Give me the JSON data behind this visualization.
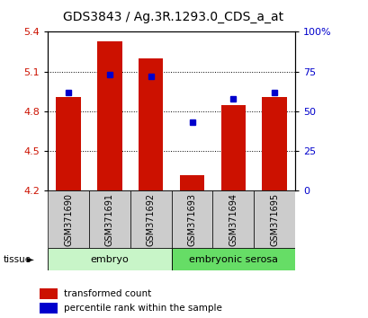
{
  "title": "GDS3843 / Ag.3R.1293.0_CDS_a_at",
  "samples": [
    "GSM371690",
    "GSM371691",
    "GSM371692",
    "GSM371693",
    "GSM371694",
    "GSM371695"
  ],
  "red_values": [
    4.91,
    5.33,
    5.2,
    4.32,
    4.85,
    4.91
  ],
  "blue_percentiles": [
    62,
    73,
    72,
    43,
    58,
    62
  ],
  "ylim": [
    4.2,
    5.4
  ],
  "y2lim": [
    0,
    100
  ],
  "yticks": [
    4.2,
    4.5,
    4.8,
    5.1,
    5.4
  ],
  "y2ticks": [
    0,
    25,
    50,
    75,
    100
  ],
  "y2ticklabels": [
    "0",
    "25",
    "50",
    "75",
    "100%"
  ],
  "tissue_groups": [
    {
      "label": "embryo",
      "start": 0,
      "end": 3,
      "color": "#c8f5c8"
    },
    {
      "label": "embryonic serosa",
      "start": 3,
      "end": 6,
      "color": "#66dd66"
    }
  ],
  "bar_color": "#cc1100",
  "dot_color": "#0000cc",
  "grid_color": "#000000",
  "bar_width": 0.6,
  "tissue_label": "tissue",
  "legend_red": "transformed count",
  "legend_blue": "percentile rank within the sample",
  "bg_color": "#ffffff",
  "plot_bg": "#ffffff",
  "label_area_color": "#cccccc",
  "title_fontsize": 10,
  "tick_fontsize": 8,
  "label_fontsize": 7
}
